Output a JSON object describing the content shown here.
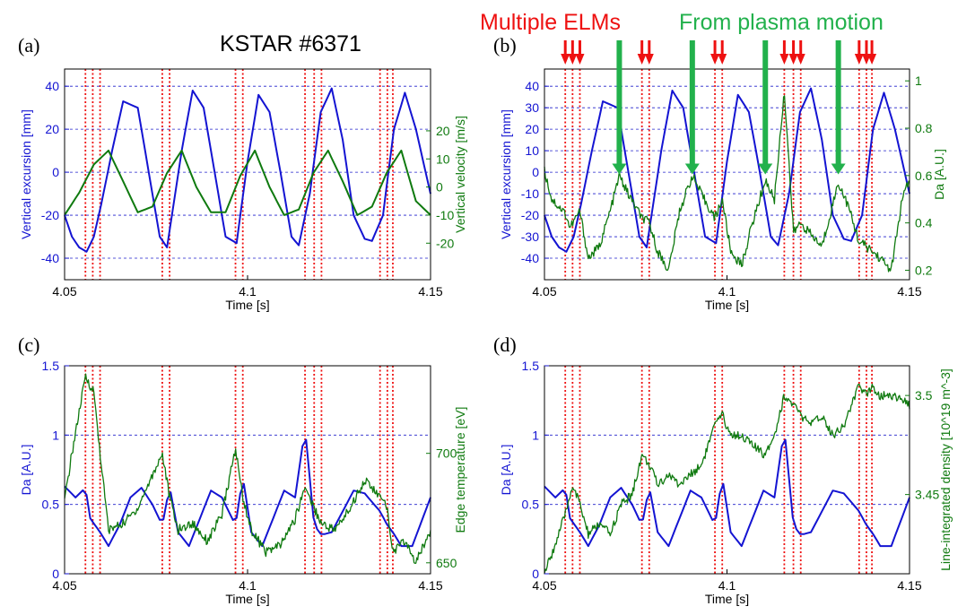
{
  "header_title": "KSTAR #6371",
  "annotation_elms": "Multiple ELMs",
  "annotation_motion": "From plasma motion",
  "colors": {
    "blue": "#1414d2",
    "green": "#0f7a0f",
    "red": "#ee1111",
    "arrow_green": "#22b14c",
    "grid": "#2020cc"
  },
  "elm_times": [
    4.0557,
    4.0577,
    4.0597,
    4.0767,
    4.0787,
    4.0967,
    4.0987,
    4.1157,
    4.1182,
    4.1202,
    4.1362,
    4.1382,
    4.1397
  ],
  "elm_arrow_groups": [
    {
      "times": [
        4.0557,
        4.0577,
        4.0597
      ]
    },
    {
      "times": [
        4.0767,
        4.0787
      ]
    },
    {
      "times": [
        4.0967,
        4.0987
      ]
    },
    {
      "times": [
        4.1157,
        4.1182,
        4.1202
      ]
    },
    {
      "times": [
        4.1362,
        4.1382,
        4.1397
      ]
    }
  ],
  "motion_arrow_times": [
    4.0705,
    4.0905,
    4.1105,
    4.1305
  ],
  "chart_data": [
    {
      "panel": "(a)",
      "type": "line",
      "xlabel": "Time [s]",
      "xlim": [
        4.05,
        4.15
      ],
      "xticks": [
        "4.05",
        "4.1",
        "4.15"
      ],
      "grid": "horizontal dashed",
      "left_axis": {
        "label": "Vertical excursion [mm]",
        "ylim": [
          -50,
          48
        ],
        "ticks": [
          "-40",
          "-20",
          "0",
          "20",
          "40"
        ],
        "color": "blue"
      },
      "right_axis": {
        "label": "Vertical velocity [m/s]",
        "ylim": [
          -33,
          42
        ],
        "ticks": [
          "-20",
          "-10",
          "0",
          "10",
          "20"
        ],
        "color": "green"
      },
      "series": [
        {
          "axis": "left",
          "color": "blue",
          "x": [
            4.05,
            4.052,
            4.054,
            4.056,
            4.058,
            4.06,
            4.063,
            4.066,
            4.07,
            4.073,
            4.076,
            4.078,
            4.082,
            4.085,
            4.088,
            4.091,
            4.094,
            4.097,
            4.1,
            4.103,
            4.106,
            4.109,
            4.112,
            4.114,
            4.117,
            4.12,
            4.123,
            4.126,
            4.129,
            4.132,
            4.134,
            4.137,
            4.14,
            4.143,
            4.146,
            4.15
          ],
          "values": [
            -20,
            -30,
            -35,
            -37,
            -30,
            -15,
            10,
            33,
            30,
            0,
            -30,
            -35,
            10,
            38,
            30,
            0,
            -30,
            -33,
            5,
            36,
            28,
            0,
            -30,
            -34,
            -10,
            28,
            39,
            15,
            -20,
            -31,
            -32,
            -20,
            20,
            37,
            20,
            -10
          ]
        },
        {
          "axis": "right",
          "color": "green",
          "x": [
            4.05,
            4.054,
            4.058,
            4.062,
            4.066,
            4.07,
            4.074,
            4.078,
            4.082,
            4.086,
            4.09,
            4.094,
            4.098,
            4.102,
            4.106,
            4.11,
            4.114,
            4.118,
            4.122,
            4.126,
            4.13,
            4.134,
            4.138,
            4.142,
            4.146,
            4.15
          ],
          "values": [
            -10,
            -2,
            8,
            13,
            2,
            -9,
            -7,
            5,
            13,
            0,
            -9,
            -9,
            4,
            13,
            0,
            -10,
            -8,
            5,
            13,
            2,
            -10,
            -7,
            5,
            13,
            -5,
            -10
          ]
        }
      ]
    },
    {
      "panel": "(b)",
      "type": "line",
      "xlabel": "Time [s]",
      "xlim": [
        4.05,
        4.15
      ],
      "xticks": [
        "4.05",
        "4.1",
        "4.15"
      ],
      "grid": "horizontal dashed",
      "left_axis": {
        "label": "Vertical excursion [mm]",
        "ylim": [
          -50,
          48
        ],
        "ticks": [
          "-40",
          "-30",
          "-20",
          "-10",
          "0",
          "10",
          "20",
          "30",
          "40"
        ],
        "color": "blue"
      },
      "right_axis": {
        "label": "Da [A.U.]",
        "ylim": [
          0.16,
          1.05
        ],
        "ticks": [
          "0.2",
          "0.4",
          "0.6",
          "0.8",
          "1"
        ],
        "color": "green"
      },
      "series": [
        {
          "axis": "left",
          "color": "blue",
          "same_as": "(a) left"
        },
        {
          "axis": "right",
          "color": "green",
          "x": [
            4.05,
            4.052,
            4.0557,
            4.057,
            4.0597,
            4.062,
            4.065,
            4.068,
            4.0705,
            4.073,
            4.0767,
            4.0787,
            4.081,
            4.084,
            4.087,
            4.0905,
            4.093,
            4.0967,
            4.0987,
            4.101,
            4.104,
            4.107,
            4.1105,
            4.113,
            4.1157,
            4.1182,
            4.1202,
            4.123,
            4.126,
            4.1305,
            4.133,
            4.1362,
            4.1382,
            4.1397,
            4.142,
            4.145,
            4.148,
            4.15
          ],
          "values": [
            0.62,
            0.5,
            0.44,
            0.38,
            0.45,
            0.25,
            0.3,
            0.45,
            0.6,
            0.52,
            0.42,
            0.4,
            0.28,
            0.2,
            0.45,
            0.6,
            0.52,
            0.42,
            0.5,
            0.28,
            0.22,
            0.4,
            0.58,
            0.5,
            0.96,
            0.36,
            0.4,
            0.35,
            0.3,
            0.57,
            0.48,
            0.32,
            0.3,
            0.28,
            0.25,
            0.2,
            0.5,
            0.58
          ]
        }
      ]
    },
    {
      "panel": "(c)",
      "type": "line",
      "xlabel": "Time [s]",
      "xlim": [
        4.05,
        4.15
      ],
      "xticks": [
        "4.05",
        "4.1",
        "4.15"
      ],
      "grid": "horizontal dashed",
      "left_axis": {
        "label": "Da [A.U.]",
        "ylim": [
          0,
          1.5
        ],
        "ticks": [
          "0",
          "0.5",
          "1",
          "1.5"
        ],
        "color": "blue"
      },
      "right_axis": {
        "label": "Edge temperature [eV]",
        "ylim": [
          645,
          740
        ],
        "ticks": [
          "650",
          "700"
        ],
        "color": "green"
      },
      "series": [
        {
          "axis": "left",
          "color": "blue",
          "x": [
            4.05,
            4.053,
            4.0557,
            4.057,
            4.0597,
            4.062,
            4.065,
            4.068,
            4.071,
            4.074,
            4.0767,
            4.0787,
            4.081,
            4.084,
            4.087,
            4.09,
            4.093,
            4.0967,
            4.0987,
            4.101,
            4.104,
            4.107,
            4.11,
            4.113,
            4.1157,
            4.1182,
            4.1202,
            4.123,
            4.126,
            4.129,
            4.132,
            4.1362,
            4.1382,
            4.1397,
            4.142,
            4.145,
            4.15
          ],
          "values": [
            0.63,
            0.55,
            0.62,
            0.4,
            0.3,
            0.2,
            0.35,
            0.55,
            0.62,
            0.5,
            0.35,
            0.63,
            0.3,
            0.2,
            0.4,
            0.6,
            0.55,
            0.35,
            0.7,
            0.3,
            0.2,
            0.4,
            0.6,
            0.55,
            1.05,
            0.35,
            0.28,
            0.3,
            0.45,
            0.6,
            0.58,
            0.45,
            0.35,
            0.3,
            0.2,
            0.2,
            0.55
          ]
        },
        {
          "axis": "right",
          "color": "green",
          "x": [
            4.05,
            4.052,
            4.0557,
            4.058,
            4.0597,
            4.062,
            4.066,
            4.07,
            4.074,
            4.0767,
            4.0787,
            4.081,
            4.085,
            4.089,
            4.093,
            4.0967,
            4.0987,
            4.101,
            4.105,
            4.109,
            4.113,
            4.1157,
            4.1182,
            4.1202,
            4.124,
            4.128,
            4.132,
            4.1362,
            4.1382,
            4.1397,
            4.143,
            4.146,
            4.15
          ],
          "values": [
            678,
            700,
            735,
            728,
            700,
            665,
            668,
            675,
            690,
            700,
            680,
            665,
            668,
            660,
            672,
            702,
            680,
            665,
            655,
            658,
            670,
            685,
            675,
            668,
            665,
            675,
            688,
            680,
            675,
            655,
            660,
            650,
            665
          ]
        }
      ]
    },
    {
      "panel": "(d)",
      "type": "line",
      "xlabel": "Time [s]",
      "xlim": [
        4.05,
        4.15
      ],
      "xticks": [
        "4.05",
        "4.1",
        "4.15"
      ],
      "grid": "horizontal dashed",
      "left_axis": {
        "label": "Da [A.U.]",
        "ylim": [
          0,
          1.5
        ],
        "ticks": [
          "0",
          "0.5",
          "1",
          "1.5"
        ],
        "color": "blue"
      },
      "right_axis": {
        "label": "Line-integrated density [10^19 m^-3]",
        "ylim": [
          3.41,
          3.515
        ],
        "ticks": [
          "3.45",
          "3.5"
        ],
        "color": "green"
      },
      "series": [
        {
          "axis": "left",
          "color": "blue",
          "same_as": "(c) left"
        },
        {
          "axis": "right",
          "color": "green",
          "x": [
            4.05,
            4.053,
            4.0557,
            4.0577,
            4.0597,
            4.062,
            4.065,
            4.068,
            4.071,
            4.074,
            4.0767,
            4.0787,
            4.081,
            4.084,
            4.087,
            4.09,
            4.093,
            4.0967,
            4.0987,
            4.101,
            4.104,
            4.107,
            4.11,
            4.113,
            4.1157,
            4.1182,
            4.1202,
            4.123,
            4.126,
            4.129,
            4.132,
            4.1362,
            4.1382,
            4.1397,
            4.142,
            4.146,
            4.15
          ],
          "values": [
            3.41,
            3.425,
            3.44,
            3.455,
            3.445,
            3.43,
            3.435,
            3.43,
            3.445,
            3.45,
            3.47,
            3.465,
            3.455,
            3.46,
            3.455,
            3.46,
            3.465,
            3.485,
            3.49,
            3.48,
            3.48,
            3.475,
            3.47,
            3.48,
            3.5,
            3.495,
            3.49,
            3.485,
            3.49,
            3.48,
            3.485,
            3.505,
            3.5,
            3.505,
            3.5,
            3.5,
            3.495
          ]
        }
      ]
    }
  ]
}
